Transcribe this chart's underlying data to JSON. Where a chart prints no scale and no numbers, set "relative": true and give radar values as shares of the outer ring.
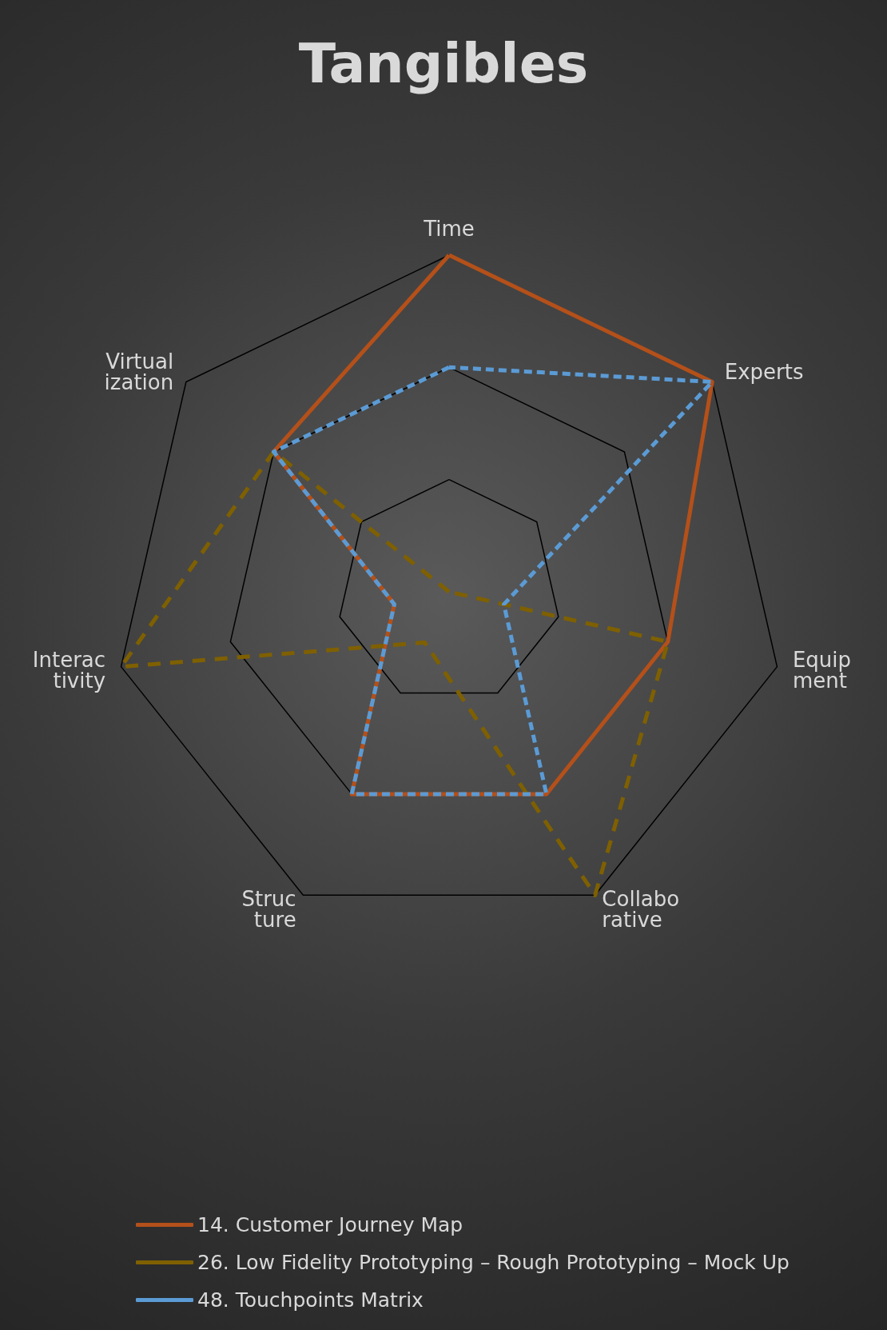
{
  "chart_data": {
    "type": "radar",
    "title": "Tangibles",
    "relative": true,
    "legend": "bottom",
    "marker": "none",
    "categories": [
      "Time",
      "Experts",
      "Equipment",
      "Collaborative",
      "Structure",
      "Interactivity",
      "Virtualization"
    ],
    "series": [
      {
        "name": "14. Customer Journey Map",
        "color": "#b4501a",
        "line_style": "solid",
        "values": [
          1,
          1,
          0.667,
          0.667,
          0.667,
          0.167,
          0.667
        ]
      },
      {
        "name": "26. Low Fidelity Prototyping – Rough Prototyping – Mock Up",
        "color": "#7f6000",
        "line_style": "dashed",
        "values": [
          null,
          null,
          0.667,
          1,
          0.167,
          1,
          0.667
        ]
      },
      {
        "name": "48. Touchpoints Matrix",
        "color": "#5b9bd5",
        "line_style": "dotted",
        "values": [
          0.667,
          1,
          0.167,
          0.667,
          0.667,
          0.167,
          0.667
        ]
      }
    ]
  }
}
